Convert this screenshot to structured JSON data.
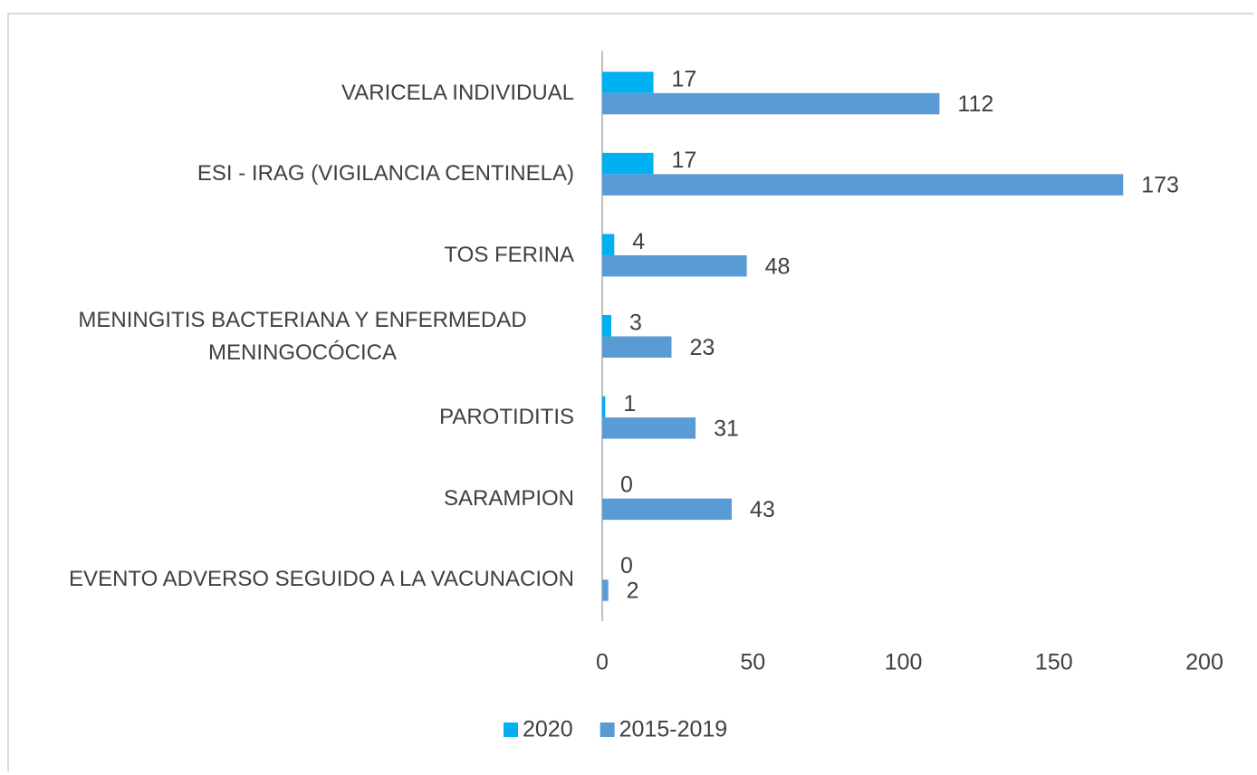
{
  "chart_data": {
    "type": "bar",
    "orientation": "horizontal",
    "categories": [
      "VARICELA INDIVIDUAL",
      "ESI - IRAG (VIGILANCIA CENTINELA)",
      "TOS FERINA",
      "MENINGITIS BACTERIANA Y ENFERMEDAD MENINGOCÓCICA",
      "PAROTIDITIS",
      "SARAMPION",
      "EVENTO ADVERSO SEGUIDO A LA VACUNACION"
    ],
    "series": [
      {
        "name": "2020",
        "color": "#00b0f0",
        "values": [
          17,
          17,
          4,
          3,
          1,
          0,
          0
        ]
      },
      {
        "name": "2015-2019",
        "color": "#5b9bd5",
        "values": [
          112,
          173,
          48,
          23,
          31,
          43,
          2
        ]
      }
    ],
    "xlim": [
      0,
      200
    ],
    "xticks": [
      0,
      50,
      100,
      150,
      200
    ],
    "grid": false,
    "legend": "bottom"
  }
}
